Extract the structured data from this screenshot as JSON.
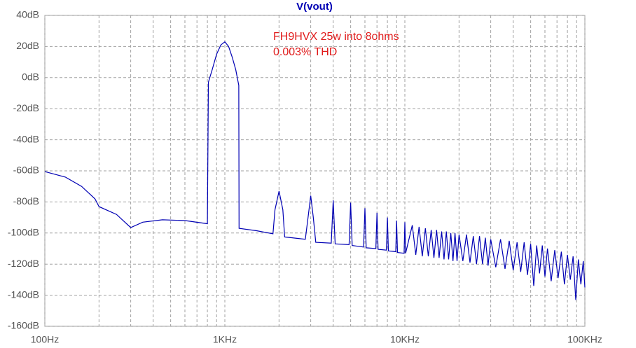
{
  "chart_data": {
    "type": "line",
    "annotations": [
      "FH9HVX 25w into 8ohms",
      "0.003% THD"
    ],
    "x_log": true,
    "grid": true,
    "x": [
      100,
      130,
      160,
      190,
      200,
      250,
      300,
      350,
      450,
      600,
      800,
      810,
      850,
      900,
      950,
      1000,
      1050,
      1100,
      1150,
      1195,
      1200,
      1500,
      1850,
      1900,
      2000,
      2100,
      2150,
      2800,
      2900,
      3000,
      3100,
      3200,
      3900,
      4000,
      4100,
      4900,
      5000,
      5100,
      5900,
      6000,
      6100,
      6900,
      7000,
      7100,
      7900,
      8000,
      8100,
      8900,
      9000,
      9100,
      9900,
      10000,
      10100,
      11000,
      11500,
      12000,
      12500,
      13000,
      13500,
      14000,
      14500,
      15000,
      15500,
      16000,
      16500,
      17000,
      17500,
      18000,
      18500,
      19000,
      19500,
      20000,
      21000,
      22000,
      23000,
      24000,
      25000,
      26000,
      27000,
      28000,
      29000,
      30000,
      32000,
      34000,
      36000,
      38000,
      40000,
      42000,
      44000,
      46000,
      48000,
      50000,
      52000,
      54000,
      56000,
      58000,
      60000,
      62000,
      65000,
      68000,
      71000,
      74000,
      77000,
      80000,
      83000,
      86000,
      89000,
      92000,
      95000,
      98000,
      100000
    ],
    "series": [
      {
        "name": "V(vout)",
        "color": "#0000b4",
        "values": [
          -60.5,
          -64,
          -70,
          -78,
          -83,
          -88,
          -96.5,
          -93,
          -91.5,
          -92,
          -94,
          -3,
          5,
          15,
          21,
          23,
          20,
          13,
          5,
          -5,
          -97,
          -98.5,
          -100.5,
          -85,
          -73,
          -85,
          -102.5,
          -104,
          -90,
          -76,
          -90,
          -106,
          -106.5,
          -79,
          -107,
          -107.5,
          -80.5,
          -108,
          -109,
          -84,
          -109.5,
          -110,
          -87,
          -110.5,
          -111,
          -90,
          -111.5,
          -112,
          -92,
          -112.5,
          -113,
          -93,
          -113,
          -95,
          -114,
          -96,
          -115,
          -97,
          -115,
          -98,
          -116,
          -98,
          -116,
          -99,
          -117,
          -99,
          -117,
          -100,
          -118,
          -100,
          -118,
          -101,
          -118,
          -101,
          -119,
          -102,
          -120,
          -102,
          -120,
          -103,
          -121,
          -104,
          -122,
          -104,
          -123,
          -105,
          -124,
          -106,
          -125,
          -106,
          -127,
          -107,
          -134,
          -108,
          -126,
          -108,
          -128,
          -110,
          -131,
          -111,
          -129,
          -112,
          -133,
          -114,
          -130,
          -115,
          -143,
          -117,
          -133,
          -118,
          -135
        ]
      }
    ],
    "xlim": [
      100,
      100000
    ],
    "xticks": [
      {
        "value": 100,
        "label": "100Hz"
      },
      {
        "value": 1000,
        "label": "1KHz"
      },
      {
        "value": 10000,
        "label": "10KHz"
      },
      {
        "value": 100000,
        "label": "100KHz"
      }
    ],
    "ylim": [
      -160,
      40
    ],
    "yticks": [
      {
        "value": -160,
        "label": "-160dB"
      },
      {
        "value": -140,
        "label": "-140dB"
      },
      {
        "value": -120,
        "label": "-120dB"
      },
      {
        "value": -100,
        "label": "-100dB"
      },
      {
        "value": -80,
        "label": "-80dB"
      },
      {
        "value": -60,
        "label": "-60dB"
      },
      {
        "value": -40,
        "label": "-40dB"
      },
      {
        "value": -20,
        "label": "-20dB"
      },
      {
        "value": 0,
        "label": "0dB"
      },
      {
        "value": 20,
        "label": "20dB"
      },
      {
        "value": 40,
        "label": "40dB"
      }
    ]
  }
}
